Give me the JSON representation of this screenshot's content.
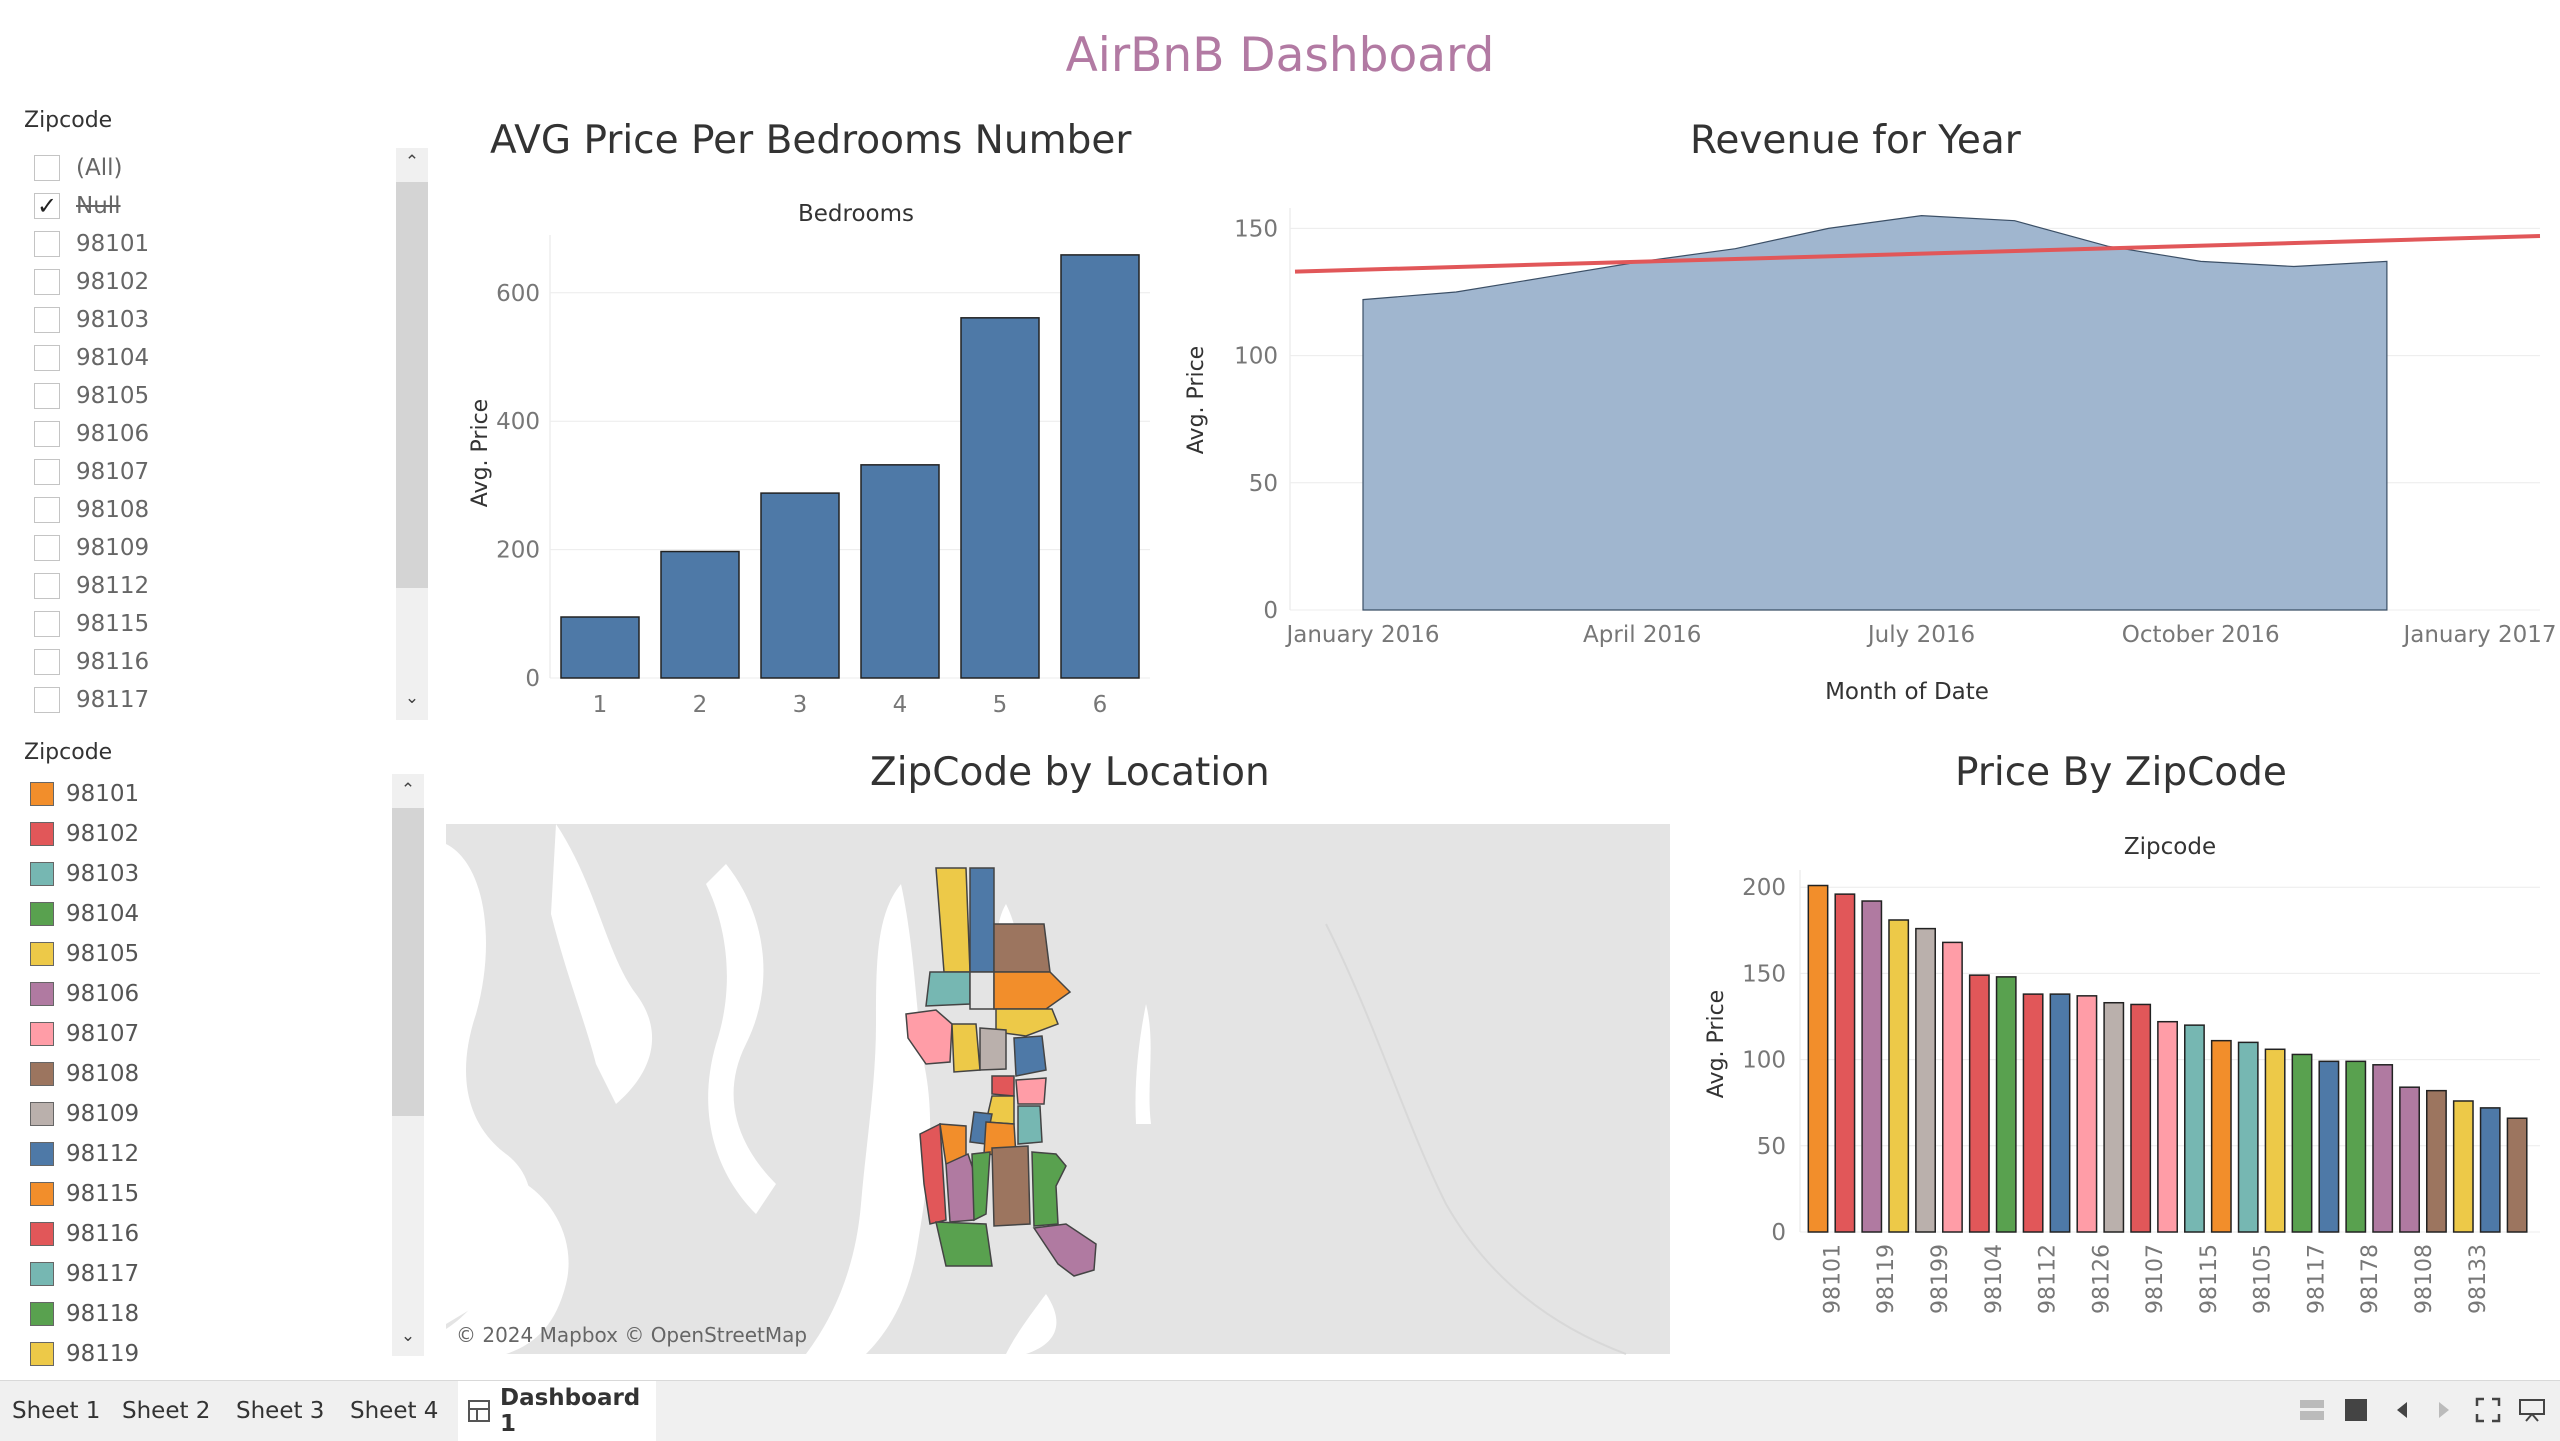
{
  "dashboard": {
    "title": "AirBnB Dashboard"
  },
  "filter": {
    "title": "Zipcode",
    "items": [
      {
        "label": "(All)",
        "checked": false,
        "strike": false
      },
      {
        "label": "Null",
        "checked": true,
        "strike": true
      },
      {
        "label": "98101",
        "checked": false,
        "strike": false
      },
      {
        "label": "98102",
        "checked": false,
        "strike": false
      },
      {
        "label": "98103",
        "checked": false,
        "strike": false
      },
      {
        "label": "98104",
        "checked": false,
        "strike": false
      },
      {
        "label": "98105",
        "checked": false,
        "strike": false
      },
      {
        "label": "98106",
        "checked": false,
        "strike": false
      },
      {
        "label": "98107",
        "checked": false,
        "strike": false
      },
      {
        "label": "98108",
        "checked": false,
        "strike": false
      },
      {
        "label": "98109",
        "checked": false,
        "strike": false
      },
      {
        "label": "98112",
        "checked": false,
        "strike": false
      },
      {
        "label": "98115",
        "checked": false,
        "strike": false
      },
      {
        "label": "98116",
        "checked": false,
        "strike": false
      },
      {
        "label": "98117",
        "checked": false,
        "strike": false
      }
    ]
  },
  "legend": {
    "title": "Zipcode",
    "items": [
      {
        "label": "98101",
        "color": "#f28e2b"
      },
      {
        "label": "98102",
        "color": "#e15759"
      },
      {
        "label": "98103",
        "color": "#76b7b2"
      },
      {
        "label": "98104",
        "color": "#59a14f"
      },
      {
        "label": "98105",
        "color": "#edc948"
      },
      {
        "label": "98106",
        "color": "#b07aa1"
      },
      {
        "label": "98107",
        "color": "#ff9da7"
      },
      {
        "label": "98108",
        "color": "#9c755f"
      },
      {
        "label": "98109",
        "color": "#bab0ac"
      },
      {
        "label": "98112",
        "color": "#4e79a7"
      },
      {
        "label": "98115",
        "color": "#f28e2b"
      },
      {
        "label": "98116",
        "color": "#e15759"
      },
      {
        "label": "98117",
        "color": "#76b7b2"
      },
      {
        "label": "98118",
        "color": "#59a14f"
      },
      {
        "label": "98119",
        "color": "#edc948"
      }
    ]
  },
  "map": {
    "title": "ZipCode by Location",
    "attribution": "© 2024 Mapbox © OpenStreetMap"
  },
  "tabs": {
    "items": [
      "Sheet 1",
      "Sheet 2",
      "Sheet 3",
      "Sheet 4"
    ],
    "active": "Dashboard 1"
  },
  "toolbar_icons": [
    "grid-view-icon",
    "dark-square-icon",
    "prev-arrow-icon",
    "next-arrow-icon",
    "fullscreen-icon",
    "presentation-icon"
  ],
  "chart_data": [
    {
      "type": "bar",
      "title": "AVG Price Per Bedrooms Number",
      "subtitle": "Bedrooms",
      "categories": [
        "1",
        "2",
        "3",
        "4",
        "5",
        "6"
      ],
      "values": [
        95,
        197,
        288,
        332,
        561,
        659
      ],
      "ylabel": "Avg. Price",
      "yticks": [
        0,
        200,
        400,
        600
      ],
      "ylim": [
        0,
        690
      ],
      "bar_color": "#4e79a7",
      "grid": true
    },
    {
      "type": "area",
      "title": "Revenue for Year",
      "xlabel": "Month of Date",
      "ylabel": "Avg. Price",
      "x": [
        "2016-01",
        "2016-02",
        "2016-03",
        "2016-04",
        "2016-05",
        "2016-06",
        "2016-07",
        "2016-08",
        "2016-09",
        "2016-10",
        "2016-11",
        "2016-12"
      ],
      "values": [
        122,
        125,
        131,
        137,
        142,
        150,
        155,
        153,
        143,
        137,
        135,
        137
      ],
      "xticks": [
        "January 2016",
        "April 2016",
        "July 2016",
        "October 2016",
        "January 2017"
      ],
      "yticks": [
        0,
        50,
        100,
        150
      ],
      "ylim": [
        0,
        158
      ],
      "trend_line": {
        "start": 133,
        "end": 147,
        "color": "#e15759"
      },
      "fill_color": "#a0b6cf",
      "grid": true
    },
    {
      "type": "bar",
      "title": "Price By ZipCode",
      "subtitle": "Zipcode",
      "ylabel": "Avg. Price",
      "yticks": [
        0,
        50,
        100,
        150,
        200
      ],
      "ylim": [
        0,
        210
      ],
      "tick_labels": [
        "98101",
        "98119",
        "98199",
        "98104",
        "98112",
        "98126",
        "98107",
        "98115",
        "98105",
        "98117",
        "98178",
        "98108",
        "98133"
      ],
      "bars": [
        {
          "value": 201,
          "color": "#f28e2b"
        },
        {
          "value": 196,
          "color": "#e15759"
        },
        {
          "value": 192,
          "color": "#b07aa1"
        },
        {
          "value": 181,
          "color": "#edc948"
        },
        {
          "value": 176,
          "color": "#bab0ac"
        },
        {
          "value": 168,
          "color": "#ff9da7"
        },
        {
          "value": 149,
          "color": "#e15759"
        },
        {
          "value": 148,
          "color": "#59a14f"
        },
        {
          "value": 138,
          "color": "#e15759"
        },
        {
          "value": 138,
          "color": "#4e79a7"
        },
        {
          "value": 137,
          "color": "#ff9da7"
        },
        {
          "value": 133,
          "color": "#bab0ac"
        },
        {
          "value": 132,
          "color": "#e15759"
        },
        {
          "value": 122,
          "color": "#ff9da7"
        },
        {
          "value": 120,
          "color": "#76b7b2"
        },
        {
          "value": 111,
          "color": "#f28e2b"
        },
        {
          "value": 110,
          "color": "#76b7b2"
        },
        {
          "value": 106,
          "color": "#edc948"
        },
        {
          "value": 103,
          "color": "#59a14f"
        },
        {
          "value": 99,
          "color": "#4e79a7"
        },
        {
          "value": 99,
          "color": "#59a14f"
        },
        {
          "value": 97,
          "color": "#b07aa1"
        },
        {
          "value": 84,
          "color": "#b07aa1"
        },
        {
          "value": 82,
          "color": "#9c755f"
        },
        {
          "value": 76,
          "color": "#edc948"
        },
        {
          "value": 72,
          "color": "#4e79a7"
        },
        {
          "value": 66,
          "color": "#9c755f"
        }
      ],
      "grid": true
    }
  ]
}
